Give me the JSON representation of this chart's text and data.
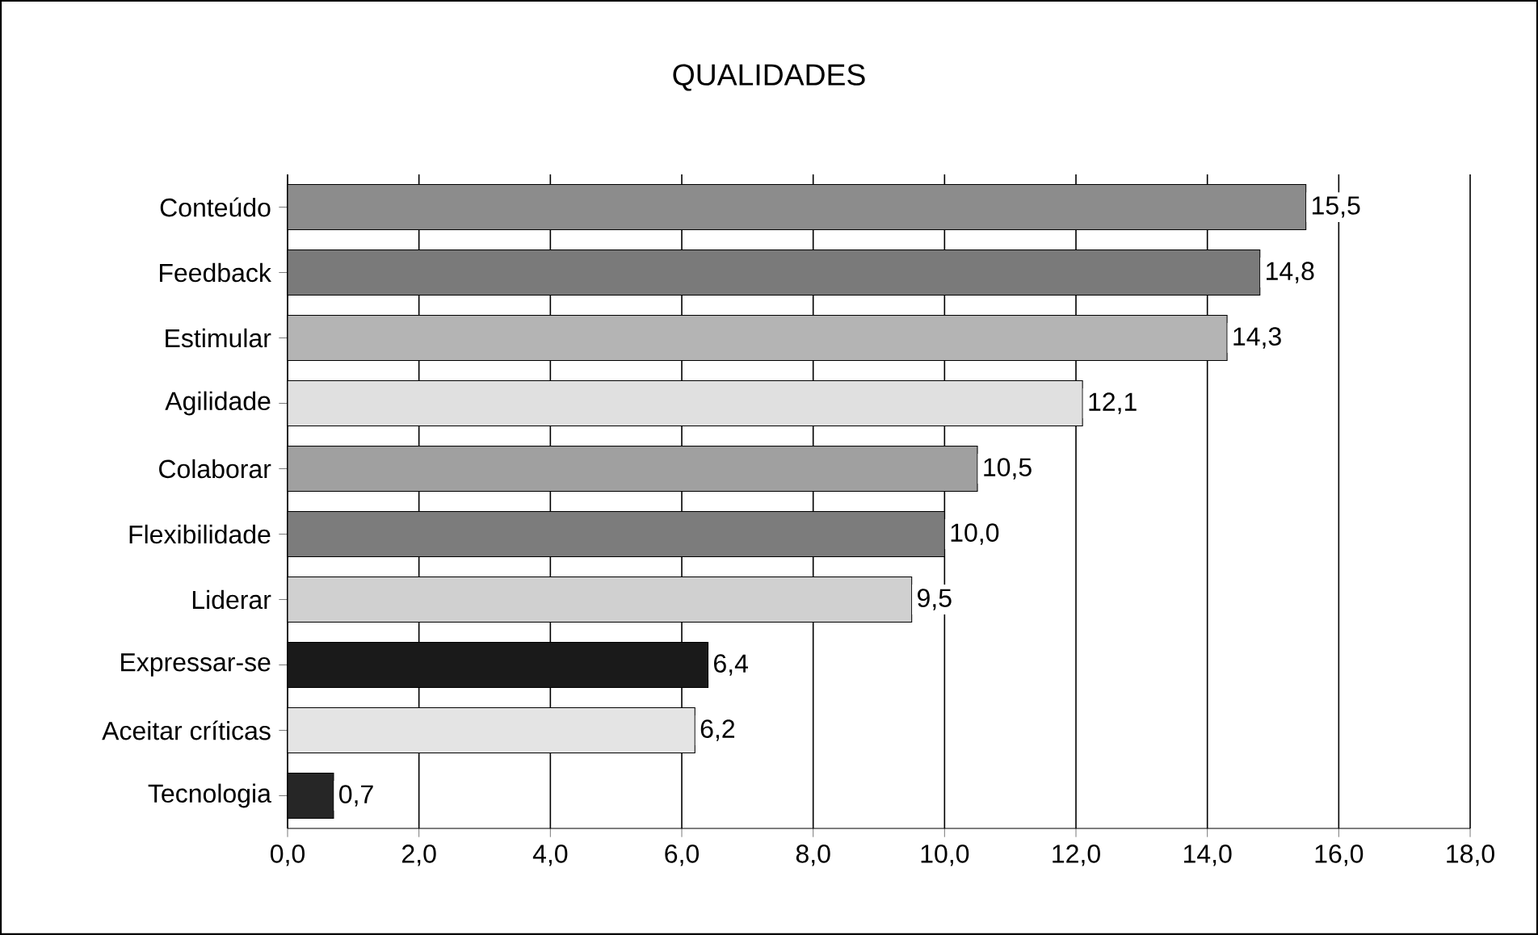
{
  "chart_data": {
    "type": "bar",
    "orientation": "horizontal",
    "title": "QUALIDADES",
    "categories": [
      "Conteúdo",
      "Feedback",
      "Estimular",
      "Agilidade",
      "Colaborar",
      "Flexibilidade",
      "Liderar",
      "Expressar-se",
      "Aceitar críticas",
      "Tecnologia"
    ],
    "values": [
      15.5,
      14.8,
      14.3,
      12.1,
      10.5,
      10.0,
      9.5,
      6.4,
      6.2,
      0.7
    ],
    "value_labels": [
      "15,5",
      "14,8",
      "14,3",
      "12,1",
      "10,5",
      "10,0",
      "9,5",
      "6,4",
      "6,2",
      "0,7"
    ],
    "colors": [
      "#8c8c8c",
      "#7a7a7a",
      "#b4b4b4",
      "#e0e0e0",
      "#a0a0a0",
      "#7c7c7c",
      "#d0d0d0",
      "#1a1a1a",
      "#e4e4e4",
      "#262626"
    ],
    "xlim": [
      0,
      18
    ],
    "xticks": [
      {
        "value": 0,
        "label": "0,0"
      },
      {
        "value": 2,
        "label": "2,0"
      },
      {
        "value": 4,
        "label": "4,0"
      },
      {
        "value": 6,
        "label": "6,0"
      },
      {
        "value": 8,
        "label": "8,0"
      },
      {
        "value": 10,
        "label": "10,0"
      },
      {
        "value": 12,
        "label": "12,0"
      },
      {
        "value": 14,
        "label": "14,0"
      },
      {
        "value": 16,
        "label": "16,0"
      },
      {
        "value": 18,
        "label": "18,0"
      }
    ],
    "grid": "x"
  }
}
